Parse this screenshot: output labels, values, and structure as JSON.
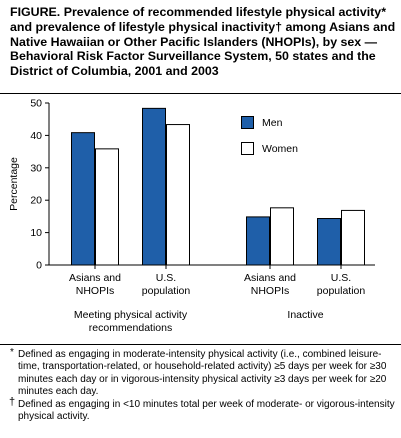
{
  "figure": {
    "title_lead": "FIGURE.",
    "title_part1": " Prevalence of recommended lifestyle physical activity",
    "title_mark1": "*",
    "title_part2": " and prevalence of lifestyle physical inactivity",
    "title_mark2": "†",
    "title_part3": " among Asians and Native Hawaiian or Other Pacific Islanders (NHOPIs), by sex — Behavioral Risk Factor Surveillance System, 50 states and the District of Columbia, 2001 and 2003"
  },
  "chart_data": {
    "type": "bar",
    "ylabel": "Percentage",
    "ylim": [
      0,
      50
    ],
    "yticks": [
      0,
      10,
      20,
      30,
      40,
      50
    ],
    "categories": [
      {
        "line1": "Asians and",
        "line2": "NHOPIs"
      },
      {
        "line1": "U.S.",
        "line2": "population"
      },
      {
        "line1": "Asians and",
        "line2": "NHOPIs"
      },
      {
        "line1": "U.S.",
        "line2": "population"
      }
    ],
    "groups": [
      {
        "line1": "Meeting physical activity",
        "line2": "recommendations",
        "categories": [
          0,
          1
        ]
      },
      {
        "line1": "Inactive",
        "line2": "",
        "categories": [
          2,
          3
        ]
      }
    ],
    "series": [
      {
        "name": "Men",
        "color": "#1f5fa9",
        "values": [
          41,
          48.5,
          15,
          14.5
        ]
      },
      {
        "name": "Women",
        "color": "#ffffff",
        "values": [
          36,
          43.5,
          17.8,
          17
        ]
      }
    ],
    "legend_position": "top-right",
    "grid": false
  },
  "footnotes": {
    "mark1": "*",
    "note1": "Defined as engaging in moderate-intensity physical activity (i.e., combined leisure-time, transportation-related, or household-related activity) ≥5 days per week for ≥30 minutes each day or in vigorous-intensity physical activity ≥3 days per week for ≥20 minutes each day.",
    "mark2": "†",
    "note2": "Defined as engaging in <10 minutes total per week of moderate- or vigorous-intensity physical activity."
  }
}
